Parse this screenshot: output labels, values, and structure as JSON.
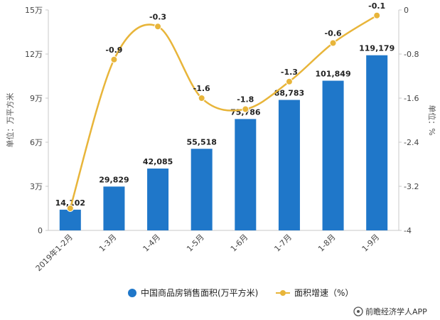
{
  "chart_data": {
    "type": "bar+line",
    "categories": [
      "2019年1-2月",
      "1-3月",
      "1-4月",
      "1-5月",
      "1-6月",
      "1-7月",
      "1-8月",
      "1-9月"
    ],
    "series": [
      {
        "name": "中国商品房销售面积(万平方米)",
        "type": "bar",
        "axis": "left",
        "values": [
          14102,
          29829,
          42085,
          55518,
          75786,
          88783,
          101849,
          119179
        ],
        "labels": [
          "14,102",
          "29,829",
          "42,085",
          "55,518",
          "75,786",
          "88,783",
          "101,849",
          "119,179"
        ],
        "color": "#1f77c9"
      },
      {
        "name": "面积增速（%）",
        "type": "line",
        "axis": "right",
        "values": [
          -3.6,
          -0.9,
          -0.3,
          -1.6,
          -1.8,
          -1.3,
          -0.6,
          -0.1
        ],
        "labels": [
          "",
          "-0.9",
          "-0.3",
          "-1.6",
          "-1.8",
          "-1.3",
          "-0.6",
          "-0.1"
        ],
        "color": "#e8b53a"
      }
    ],
    "y_left": {
      "label": "单位：万平方米",
      "min": 0,
      "max": 150000,
      "ticks": [
        0,
        30000,
        60000,
        90000,
        120000,
        150000
      ],
      "tick_labels": [
        "0",
        "3万",
        "6万",
        "9万",
        "12万",
        "15万"
      ]
    },
    "y_right": {
      "label": "单位：%",
      "min": -4,
      "max": 0,
      "ticks": [
        0,
        -0.8,
        -1.6,
        -2.4,
        -3.2,
        -4
      ],
      "tick_labels": [
        "0",
        "-0.8",
        "-1.6",
        "-2.4",
        "-3.2",
        "-4"
      ]
    },
    "legend_placement": "bottom-center",
    "grid": false
  },
  "source": "前瞻经济学人APP",
  "colors": {
    "bar": "#1f77c9",
    "line": "#e8b53a",
    "axis": "#c8c8c8"
  }
}
